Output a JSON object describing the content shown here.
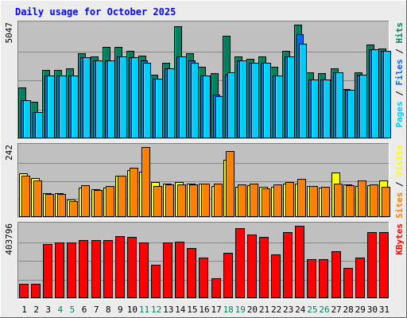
{
  "chart_data": {
    "type": "bar",
    "title": "Daily usage for October 2025",
    "x": [
      "1",
      "2",
      "3",
      "4",
      "5",
      "6",
      "7",
      "8",
      "9",
      "10",
      "11",
      "12",
      "13",
      "14",
      "15",
      "16",
      "17",
      "18",
      "19",
      "20",
      "21",
      "22",
      "23",
      "24",
      "25",
      "26",
      "27",
      "28",
      "29",
      "30",
      "31"
    ],
    "weekend_days": [
      4,
      5,
      11,
      12,
      18,
      19,
      25,
      26
    ],
    "panels": [
      {
        "id": "pages_files_hits",
        "scale_label": "5047",
        "ylim": [
          0,
          5047
        ],
        "legend": [
          {
            "text": "Pages",
            "color": "#00ccff"
          },
          {
            "text": " / ",
            "color": "#000000"
          },
          {
            "text": "Files",
            "color": "#0066ff"
          },
          {
            "text": " / ",
            "color": "#000000"
          },
          {
            "text": "Hits",
            "color": "#00805f"
          }
        ],
        "series": [
          {
            "name": "Hits",
            "color": "#00805f",
            "values": [
              2212,
              1605,
              2990,
              2990,
              3048,
              3686,
              3571,
              3976,
              3976,
              3802,
              3600,
              2760,
              3283,
              4865,
              3686,
              3107,
              2850,
              4458,
              3570,
              3454,
              3570,
              3107,
              3800,
              4939,
              2880,
              2820,
              3048,
              2150,
              2860,
              4084,
              3919
            ]
          },
          {
            "name": "Files",
            "color": "#0066ff",
            "values": [
              1663,
              1139,
              2741,
              2741,
              2741,
              3513,
              3396,
              3396,
              3570,
              3513,
              3396,
              2600,
              3048,
              3570,
              3396,
              2741,
              1895,
              2760,
              3396,
              3280,
              3280,
              2741,
              3570,
              4515,
              2558,
              2558,
              2860,
              2100,
              2760,
              3860,
              3800
            ]
          },
          {
            "name": "Pages",
            "color": "#00ccff",
            "values": [
              1663,
              1139,
              2741,
              2741,
              2741,
              3513,
              3396,
              3396,
              3570,
              3513,
              3279,
              2600,
              3048,
              3570,
              3280,
              2741,
              1848,
              2860,
              3396,
              3280,
              3280,
              2741,
              3570,
              4108,
              2558,
              2558,
              2860,
              2100,
              2760,
              3860,
              3800
            ]
          }
        ]
      },
      {
        "id": "visits_sites",
        "scale_label": "242",
        "ylim": [
          0,
          242
        ],
        "legend": [
          {
            "text": "Sites",
            "color": "#ff8000"
          },
          {
            "text": " / ",
            "color": "#000000"
          },
          {
            "text": "Visits",
            "color": "#ffff00"
          }
        ],
        "series": [
          {
            "name": "Visits",
            "color": "#ffff00",
            "values": [
              146,
              129,
              79,
              79,
              58,
              98,
              94,
              98,
              139,
              156,
              152,
              116,
              113,
              116,
              111,
              113,
              105,
              191,
              101,
              107,
              101,
              101,
              111,
              113,
              103,
              98,
              148,
              110,
              105,
              106,
              121
            ]
          },
          {
            "name": "Sites",
            "color": "#ff8000",
            "values": [
              138,
              122,
              76,
              76,
              54,
              106,
              90,
              105,
              137,
              166,
              235,
              103,
              108,
              108,
              108,
              113,
              112,
              220,
              108,
              112,
              96,
              108,
              118,
              128,
              103,
              101,
              112,
              106,
              123,
              110,
              100
            ]
          }
        ]
      },
      {
        "id": "kbytes",
        "scale_label": "403796",
        "ylim": [
          0,
          403796
        ],
        "legend": [
          {
            "text": "KBytes",
            "color": "#ff0000"
          }
        ],
        "series": [
          {
            "name": "KBytes",
            "color": "#ff0000",
            "values": [
              78000,
              78000,
              294000,
              300000,
              300000,
              313000,
              313000,
              313000,
              336000,
              329000,
              300000,
              182000,
              300000,
              306000,
              272000,
              219000,
              108000,
              245000,
              378000,
              343000,
              329000,
              235000,
              358000,
              393000,
              212000,
              212000,
              252000,
              165000,
              219000,
              358000,
              358000
            ]
          }
        ]
      }
    ]
  },
  "colors": {
    "background": "#ececec",
    "plot_background": "#c0c0c0",
    "grid": "#888888",
    "title": "#0000ff",
    "weekday_label": "#000000",
    "weekend_label": "#00805f"
  }
}
